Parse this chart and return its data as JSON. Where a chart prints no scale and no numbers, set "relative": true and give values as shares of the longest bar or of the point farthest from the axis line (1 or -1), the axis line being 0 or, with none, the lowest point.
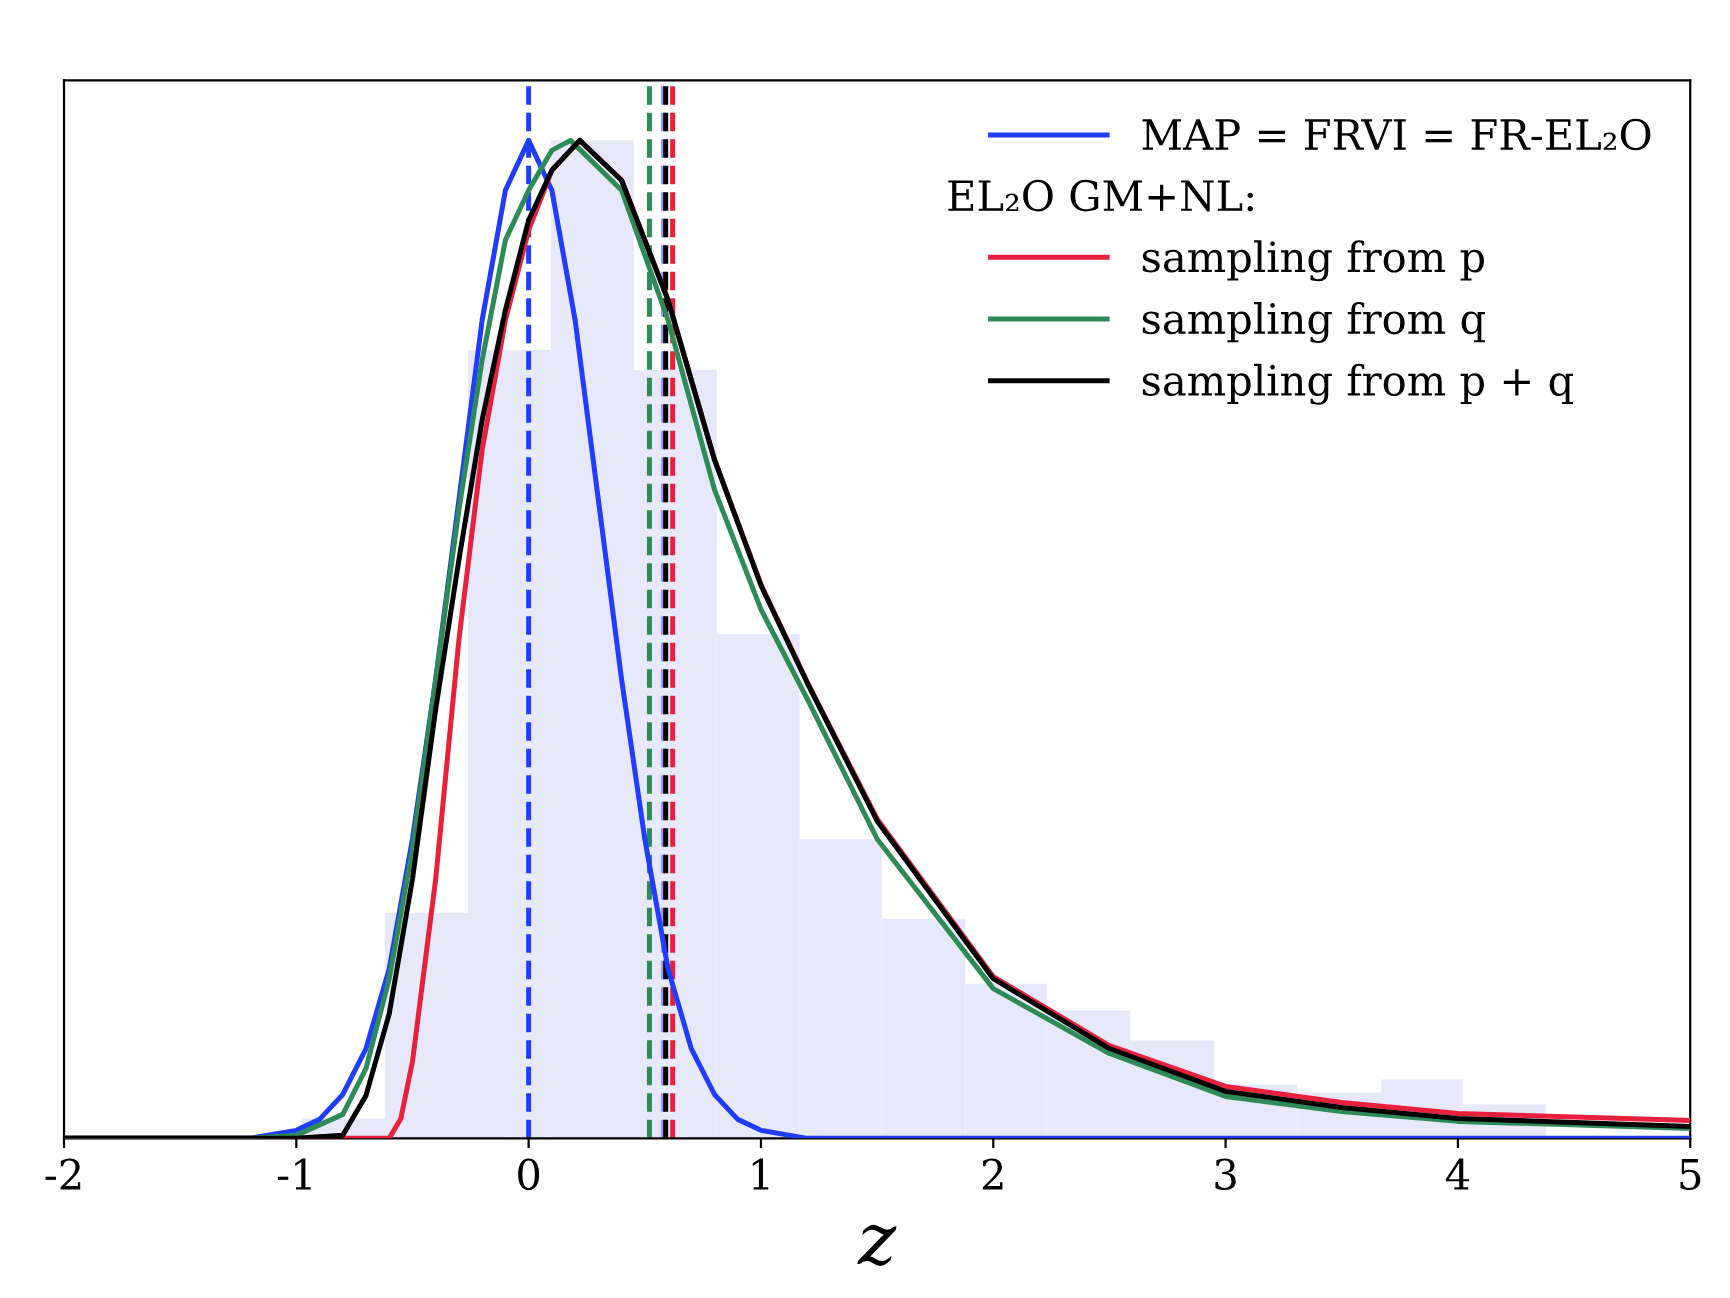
{
  "chart_data": {
    "type": "line",
    "relative": true,
    "xlabel": "z",
    "xlim": [
      -2,
      5
    ],
    "xticks": [
      -2,
      -1,
      0,
      1,
      2,
      3,
      4,
      5
    ],
    "series": [
      {
        "type": "histogram",
        "color": "#e8e8fb",
        "bins": [
          -0.975,
          -0.618,
          -0.261,
          0.096,
          0.453,
          0.81,
          1.167,
          1.52,
          1.88,
          2.23,
          2.59,
          2.95,
          3.31,
          3.67,
          4.02,
          4.38
        ],
        "values": [
          0.02,
          0.226,
          0.79,
          1.0,
          0.77,
          0.505,
          0.3,
          0.22,
          0.155,
          0.128,
          0.098,
          0.054,
          0.046,
          0.059,
          0.034
        ]
      },
      {
        "name": "MAP = FRVI = FR-EL₂O",
        "color": "#1f3cff",
        "x": [
          -2,
          -1.2,
          -1,
          -0.9,
          -0.8,
          -0.7,
          -0.6,
          -0.5,
          -0.4,
          -0.3,
          -0.2,
          -0.1,
          0,
          0.1,
          0.2,
          0.3,
          0.4,
          0.5,
          0.6,
          0.7,
          0.8,
          0.9,
          1.0,
          1.2,
          5
        ],
        "values": [
          0,
          0,
          0.008,
          0.019,
          0.044,
          0.09,
          0.17,
          0.3,
          0.46,
          0.64,
          0.82,
          0.95,
          1.0,
          0.95,
          0.82,
          0.64,
          0.46,
          0.3,
          0.17,
          0.09,
          0.044,
          0.019,
          0.008,
          0,
          0
        ]
      },
      {
        "name": "sampling from p",
        "color": "#e8203c",
        "x": [
          -2,
          -0.6,
          -0.55,
          -0.5,
          -0.4,
          -0.3,
          -0.2,
          -0.1,
          0,
          0.1,
          0.22,
          0.4,
          0.6,
          0.8,
          1.0,
          1.2,
          1.5,
          2.0,
          2.5,
          3.0,
          3.5,
          4.0,
          5.0
        ],
        "values": [
          0,
          0,
          0.02,
          0.077,
          0.26,
          0.5,
          0.69,
          0.82,
          0.91,
          0.97,
          1.0,
          0.96,
          0.84,
          0.68,
          0.555,
          0.457,
          0.32,
          0.162,
          0.093,
          0.052,
          0.036,
          0.025,
          0.018
        ]
      },
      {
        "name": "sampling from q",
        "color": "#2e8b57",
        "x": [
          -2,
          -1.2,
          -1,
          -0.8,
          -0.7,
          -0.6,
          -0.5,
          -0.4,
          -0.3,
          -0.2,
          -0.1,
          0,
          0.1,
          0.18,
          0.4,
          0.6,
          0.8,
          1.0,
          1.2,
          1.5,
          2.0,
          2.5,
          3.0,
          3.5,
          4.0,
          5.0
        ],
        "values": [
          0,
          0,
          0.003,
          0.024,
          0.07,
          0.16,
          0.29,
          0.46,
          0.63,
          0.78,
          0.9,
          0.95,
          0.99,
          1.0,
          0.95,
          0.82,
          0.65,
          0.53,
          0.44,
          0.3,
          0.15,
          0.085,
          0.042,
          0.027,
          0.017,
          0.01
        ]
      },
      {
        "name": "sampling from p + q",
        "color": "#000000",
        "x": [
          -2,
          -1,
          -0.8,
          -0.7,
          -0.6,
          -0.5,
          -0.4,
          -0.3,
          -0.2,
          -0.1,
          0,
          0.1,
          0.22,
          0.4,
          0.6,
          0.8,
          1.0,
          1.2,
          1.5,
          2.0,
          2.5,
          3.0,
          3.5,
          4.0,
          5.0
        ],
        "values": [
          0,
          0,
          0.003,
          0.043,
          0.125,
          0.26,
          0.43,
          0.58,
          0.72,
          0.83,
          0.92,
          0.97,
          1.0,
          0.96,
          0.84,
          0.68,
          0.554,
          0.456,
          0.318,
          0.16,
          0.09,
          0.047,
          0.031,
          0.02,
          0.012
        ]
      }
    ],
    "ref_lines": [
      {
        "axis": "x",
        "value": 0,
        "color": "#1f3cff",
        "line_style": "dashed"
      },
      {
        "axis": "x",
        "value": 0.52,
        "color": "#2e8b57",
        "line_style": "dashed"
      },
      {
        "axis": "x",
        "value": 0.58,
        "color": "#9999ff",
        "line_style": "dashed"
      },
      {
        "axis": "x",
        "value": 0.59,
        "color": "#000000",
        "line_style": "dashed"
      },
      {
        "axis": "x",
        "value": 0.62,
        "color": "#e8203c",
        "line_style": "dashed"
      }
    ],
    "annotations": [
      "EL₂O GM+NL:"
    ],
    "legend": "top right",
    "grid": false
  }
}
